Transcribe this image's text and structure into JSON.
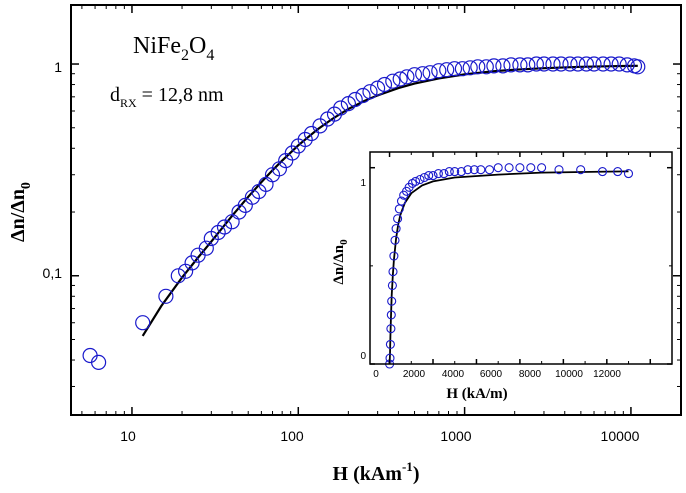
{
  "chart_data": [
    {
      "type": "scatter",
      "scale": {
        "x": "log",
        "y": "log"
      },
      "xlim": [
        4.3,
        20000
      ],
      "ylim": [
        0.022,
        1.9
      ],
      "x_ticks": [
        10,
        100,
        1000,
        10000
      ],
      "x_tick_labels": [
        "10",
        "100",
        "1000",
        "10000"
      ],
      "y_ticks": [
        0.1,
        1
      ],
      "y_tick_labels": [
        "0,1",
        "1"
      ],
      "xlabel": {
        "main": "H (kAm",
        "sup": "-1",
        "close": ")"
      },
      "ylabel": {
        "main": "Δn/Δn",
        "sub": "0"
      },
      "annotations": {
        "formula": {
          "a": "NiFe",
          "b": "2",
          "c": "O",
          "d": "4"
        },
        "size": {
          "a": "d",
          "b": "RX",
          "c": " = 12,8 nm"
        }
      },
      "grid": false,
      "legend": "none",
      "colors": {
        "markers": "#1a1acc",
        "fit": "#000000"
      },
      "series": [
        {
          "style": "open-circle markers",
          "x": [
            5.6,
            6.3,
            11.6,
            16,
            19,
            21,
            23,
            25,
            28,
            30,
            33,
            36,
            40,
            44,
            48,
            53,
            58,
            64,
            70,
            77,
            84,
            92,
            100,
            110,
            120,
            135,
            150,
            165,
            180,
            200,
            220,
            245,
            270,
            300,
            330,
            370,
            410,
            450,
            500,
            560,
            620,
            700,
            780,
            870,
            970,
            1080,
            1200,
            1350,
            1500,
            1700,
            1900,
            2150,
            2400,
            2700,
            3000,
            3400,
            3800,
            4300,
            4800,
            5400,
            6000,
            6800,
            7600,
            8500,
            9500,
            10500,
            11000
          ],
          "y": [
            0.042,
            0.039,
            0.06,
            0.08,
            0.1,
            0.105,
            0.115,
            0.125,
            0.135,
            0.15,
            0.16,
            0.17,
            0.18,
            0.2,
            0.215,
            0.235,
            0.25,
            0.27,
            0.3,
            0.32,
            0.35,
            0.38,
            0.41,
            0.44,
            0.47,
            0.51,
            0.55,
            0.58,
            0.62,
            0.65,
            0.68,
            0.71,
            0.74,
            0.77,
            0.8,
            0.83,
            0.85,
            0.87,
            0.89,
            0.9,
            0.91,
            0.93,
            0.94,
            0.95,
            0.95,
            0.96,
            0.97,
            0.97,
            0.98,
            0.98,
            0.99,
            0.99,
            0.99,
            1.0,
            1.0,
            1.0,
            1.0,
            1.0,
            1.0,
            1.0,
            1.0,
            1.0,
            1.0,
            1.0,
            0.99,
            0.98,
            0.97
          ]
        },
        {
          "style": "solid line (fit)",
          "x": [
            11.6,
            15,
            20,
            25,
            30,
            40,
            50,
            60,
            70,
            80,
            100,
            130,
            160,
            200,
            250,
            300,
            400,
            500,
            700,
            1000,
            1500,
            2000,
            3000,
            5000,
            7000,
            10000,
            11000
          ],
          "y": [
            0.052,
            0.072,
            0.098,
            0.122,
            0.145,
            0.192,
            0.236,
            0.277,
            0.315,
            0.35,
            0.413,
            0.49,
            0.55,
            0.613,
            0.67,
            0.711,
            0.77,
            0.808,
            0.855,
            0.893,
            0.925,
            0.94,
            0.956,
            0.97,
            0.976,
            0.98,
            0.981
          ]
        }
      ]
    },
    {
      "type": "scatter",
      "scale": {
        "x": "linear",
        "y": "linear"
      },
      "xlim": [
        -900,
        13000
      ],
      "ylim": [
        0,
        1.08
      ],
      "x_ticks": [
        0,
        2000,
        4000,
        6000,
        8000,
        10000,
        12000
      ],
      "x_tick_labels": [
        "0",
        "2000",
        "4000",
        "6000",
        "8000",
        "10000",
        "12000"
      ],
      "y_ticks": [
        0,
        1
      ],
      "y_tick_labels": [
        "0",
        "1"
      ],
      "xlabel": "H (kA/m)",
      "ylabel": {
        "main": "Δn/Δn",
        "sub": "0"
      },
      "grid": false,
      "legend": "none",
      "colors": {
        "markers": "#1a1acc",
        "fit": "#000000"
      },
      "series": [
        {
          "style": "open-circle markers",
          "x": [
            0,
            20,
            40,
            60,
            80,
            100,
            130,
            160,
            200,
            250,
            300,
            370,
            450,
            550,
            650,
            780,
            900,
            1050,
            1200,
            1400,
            1600,
            1800,
            2000,
            2250,
            2500,
            2750,
            3000,
            3300,
            3600,
            3900,
            4200,
            4600,
            5000,
            5500,
            6000,
            6500,
            7000,
            7800,
            8800,
            9800,
            10500,
            11000
          ],
          "y": [
            0.0,
            0.03,
            0.1,
            0.18,
            0.25,
            0.32,
            0.4,
            0.47,
            0.55,
            0.63,
            0.69,
            0.74,
            0.79,
            0.83,
            0.86,
            0.88,
            0.9,
            0.92,
            0.93,
            0.94,
            0.95,
            0.96,
            0.96,
            0.97,
            0.97,
            0.98,
            0.98,
            0.98,
            0.99,
            0.99,
            0.99,
            0.99,
            1.0,
            1.0,
            1.0,
            1.0,
            1.0,
            0.99,
            0.99,
            0.98,
            0.98,
            0.97
          ]
        },
        {
          "style": "solid line (fit)",
          "x": [
            0,
            20,
            40,
            70,
            100,
            150,
            200,
            300,
            400,
            500,
            700,
            1000,
            1500,
            2000,
            3000,
            5000,
            7000,
            10000,
            11000
          ],
          "y": [
            0.0,
            0.05,
            0.14,
            0.26,
            0.35,
            0.45,
            0.53,
            0.64,
            0.71,
            0.76,
            0.82,
            0.87,
            0.91,
            0.93,
            0.95,
            0.965,
            0.975,
            0.98,
            0.981
          ]
        }
      ]
    }
  ]
}
